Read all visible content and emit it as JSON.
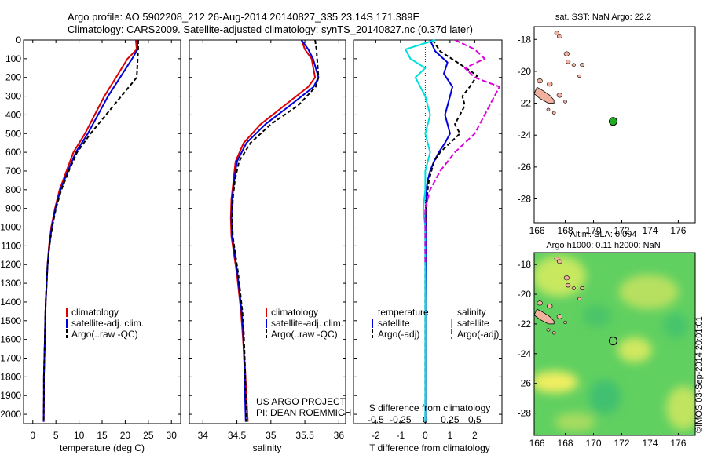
{
  "header": {
    "line1": "Argo profile: AO 5902208_212 26-Aug-2014 20140827_335 23.14S 171.389E",
    "line2": "Climatology: CARS2009. Satellite-adjusted climatology: synTS_20140827.nc (0.37d later)"
  },
  "colors": {
    "clim": "#dd0000",
    "sat": "#0000dd",
    "argo": "#000000",
    "sal_sat": "#00dddd",
    "sal_argo": "#dd00dd",
    "land": "#f0b29e"
  },
  "chart_data": [
    {
      "type": "line",
      "name": "temperature",
      "xlabel": "temperature (deg C)",
      "xlim": [
        -2,
        32
      ],
      "ylim": [
        0,
        2050
      ],
      "xticks": [
        "0",
        "5",
        "10",
        "15",
        "20",
        "25",
        "30"
      ],
      "xtick_values": [
        0,
        5,
        10,
        15,
        20,
        25,
        30
      ],
      "depth_ticks": [
        "0",
        "100",
        "200",
        "300",
        "400",
        "500",
        "600",
        "700",
        "800",
        "900",
        "1000",
        "1100",
        "1200",
        "1300",
        "1400",
        "1500",
        "1600",
        "1700",
        "1800",
        "1900",
        "2000"
      ],
      "legend": [
        "climatology",
        "satellite-adj. clim.",
        "Argo(..raw -QC)"
      ],
      "series": [
        {
          "name": "climatology",
          "x": [
            22.3,
            22.5,
            20.5,
            15.5,
            11.3,
            8.8,
            7.3,
            5.8,
            4.8,
            4.0,
            3.5,
            3.2,
            3.0,
            2.8,
            2.7,
            2.6,
            2.5,
            2.4,
            2.4,
            2.35
          ],
          "y": [
            0,
            50,
            100,
            300,
            500,
            600,
            700,
            800,
            900,
            1000,
            1100,
            1200,
            1300,
            1400,
            1500,
            1600,
            1700,
            1800,
            1900,
            2040
          ]
        },
        {
          "name": "satellite-adj. clim.",
          "x": [
            22.6,
            22.7,
            21.5,
            16.3,
            11.9,
            9.3,
            7.6,
            6.0,
            4.9,
            4.1,
            3.6,
            3.2,
            3.0,
            2.8,
            2.7,
            2.6,
            2.5,
            2.4,
            2.4,
            2.35
          ],
          "y": [
            0,
            50,
            100,
            300,
            500,
            600,
            700,
            800,
            900,
            1000,
            1100,
            1200,
            1300,
            1400,
            1500,
            1600,
            1700,
            1800,
            1900,
            2040
          ]
        },
        {
          "name": "Argo(..raw -QC)",
          "x": [
            22.8,
            22.8,
            22.5,
            17.5,
            12.5,
            9.6,
            7.8,
            6.2,
            5.0,
            4.2,
            3.6,
            3.2,
            3.0,
            2.8,
            2.7,
            2.6,
            2.5,
            2.4,
            2.4,
            2.35
          ],
          "y": [
            0,
            50,
            200,
            350,
            500,
            600,
            700,
            800,
            900,
            1000,
            1100,
            1200,
            1300,
            1400,
            1500,
            1600,
            1700,
            1800,
            1900,
            2040
          ]
        }
      ]
    },
    {
      "type": "line",
      "name": "salinity",
      "xlabel": "salinity",
      "xlim": [
        33.8,
        36.1
      ],
      "ylim": [
        0,
        2050
      ],
      "xticks": [
        "34",
        "34.5",
        "35",
        "35.5",
        "36"
      ],
      "xtick_values": [
        34,
        34.5,
        35,
        35.5,
        36
      ],
      "legend": [
        "climatology",
        "satellite-adj. clim.",
        "Argo(..raw -QC)"
      ],
      "series": [
        {
          "name": "climatology",
          "x": [
            35.45,
            35.5,
            35.6,
            35.65,
            35.55,
            35.2,
            34.85,
            34.6,
            34.48,
            34.45,
            34.42,
            34.41,
            34.42,
            34.46,
            34.5,
            34.53,
            34.56,
            34.58,
            34.6,
            34.62,
            34.64,
            34.66
          ],
          "y": [
            0,
            50,
            100,
            200,
            250,
            350,
            450,
            550,
            650,
            750,
            850,
            950,
            1050,
            1150,
            1250,
            1350,
            1450,
            1550,
            1650,
            1750,
            1900,
            2040
          ]
        },
        {
          "name": "satellite-adj. clim.",
          "x": [
            35.45,
            35.55,
            35.62,
            35.7,
            35.63,
            35.28,
            34.92,
            34.64,
            34.5,
            34.46,
            34.43,
            34.42,
            34.43,
            34.47,
            34.51,
            34.54,
            34.57,
            34.59,
            34.6,
            34.61,
            34.62,
            34.63
          ],
          "y": [
            0,
            50,
            100,
            200,
            250,
            350,
            450,
            550,
            650,
            750,
            850,
            950,
            1050,
            1150,
            1250,
            1350,
            1450,
            1550,
            1650,
            1750,
            1900,
            2040
          ]
        },
        {
          "name": "Argo(..raw -QC)",
          "x": [
            35.65,
            35.67,
            35.68,
            35.7,
            35.66,
            35.4,
            35.0,
            34.7,
            34.53,
            34.47,
            34.44,
            34.43,
            34.44,
            34.48,
            34.52,
            34.55,
            34.58,
            34.6,
            34.61,
            34.62,
            34.63,
            34.64
          ],
          "y": [
            0,
            50,
            100,
            200,
            250,
            350,
            450,
            550,
            650,
            750,
            850,
            950,
            1050,
            1150,
            1250,
            1350,
            1450,
            1550,
            1650,
            1750,
            1900,
            2040
          ]
        }
      ]
    },
    {
      "type": "line",
      "name": "difference",
      "xlabel_bottom": "T difference from climatology",
      "xlabel_top": "S difference from climatology",
      "xlim": [
        -2.9,
        3.1
      ],
      "ylim": [
        0,
        2050
      ],
      "t_xticks": [
        "-2",
        "-1",
        "0",
        "1",
        "2"
      ],
      "t_xtick_values": [
        -2,
        -1,
        0,
        1,
        2
      ],
      "s_xticks": [
        "-0.5",
        "-0.25",
        "0",
        "0.25",
        "0.5"
      ],
      "s_xtick_values": [
        -0.5,
        -0.25,
        0,
        0.25,
        0.5
      ],
      "legend_temperature_title": "temperature",
      "legend_salinity_title": "salinity",
      "legend_temperature": [
        "satellite",
        "Argo(-adj)"
      ],
      "legend_salinity": [
        "satellite",
        "Argo(-adj)"
      ],
      "series": [
        {
          "name": "temperature satellite",
          "x": [
            0.2,
            0.4,
            0.9,
            0.75,
            1.1,
            1.0,
            0.9,
            0.8,
            0.9,
            1.0,
            0.8,
            0.55,
            0.35,
            0.2,
            0.1,
            0.05,
            0.03,
            0.02,
            0.02,
            0.01,
            0.01,
            0.01
          ],
          "y": [
            0,
            60,
            120,
            180,
            250,
            300,
            350,
            400,
            450,
            500,
            550,
            600,
            650,
            700,
            750,
            800,
            900,
            1000,
            1200,
            1400,
            1700,
            2040
          ]
        },
        {
          "name": "temperature Argo(-adj)",
          "x": [
            0.3,
            0.6,
            1.3,
            2.1,
            1.8,
            1.5,
            1.6,
            1.4,
            1.2,
            1.4,
            1.0,
            0.6,
            0.35,
            0.25,
            0.15,
            0.1,
            0.05,
            0.0,
            0.0,
            0.0,
            0.0,
            0.0
          ],
          "y": [
            0,
            60,
            120,
            190,
            250,
            300,
            350,
            400,
            450,
            500,
            550,
            600,
            650,
            700,
            750,
            800,
            900,
            1000,
            1200,
            1400,
            1700,
            2040
          ]
        },
        {
          "name": "salinity satellite",
          "x": [
            0.1,
            -0.2,
            -0.15,
            0.0,
            -0.1,
            0.0,
            0.05,
            0.0,
            0.05,
            0.0,
            0.0,
            -0.02,
            0.0,
            0.0,
            0.0,
            0.0,
            0.0,
            0.0,
            0.0,
            0.0
          ],
          "y": [
            0,
            50,
            100,
            150,
            200,
            300,
            400,
            500,
            600,
            700,
            800,
            900,
            1000,
            1100,
            1200,
            1400,
            1600,
            1800,
            1900,
            2040
          ]
        },
        {
          "name": "salinity Argo(-adj)",
          "x": [
            0.3,
            0.5,
            0.6,
            0.4,
            0.5,
            0.75,
            0.7,
            0.6,
            0.5,
            0.3,
            0.15,
            0.05,
            0.0,
            0.0,
            0.0,
            0.0
          ],
          "y": [
            0,
            50,
            100,
            150,
            200,
            250,
            300,
            400,
            500,
            600,
            700,
            800,
            900,
            1000,
            1100,
            1200
          ]
        }
      ]
    }
  ],
  "map_sst": {
    "title": "sat. SST: NaN Argo: 22.2",
    "xticks": [
      "166",
      "168",
      "170",
      "172",
      "174",
      "176"
    ],
    "xtick_values": [
      166,
      168,
      170,
      172,
      174,
      176
    ],
    "yticks": [
      "-18",
      "-20",
      "-22",
      "-24",
      "-26",
      "-28"
    ],
    "ytick_values": [
      -18,
      -20,
      -22,
      -24,
      -26,
      -28
    ],
    "lon_range": [
      165.8,
      177.2
    ],
    "lat_range": [
      -17.2,
      -29.5
    ],
    "float_lon": 171.389,
    "float_lat": -23.14,
    "float_color": "#22aa22"
  },
  "map_sla": {
    "title_line1": "Altim. SLA: 0.094",
    "title_line2": "Argo h1000: 0.11 h2000: NaN",
    "xticks": [
      "166",
      "168",
      "170",
      "172",
      "174",
      "176"
    ],
    "yticks": [
      "-18",
      "-20",
      "-22",
      "-24",
      "-26",
      "-28"
    ],
    "lon_range": [
      165.8,
      177.2
    ],
    "lat_range": [
      -17.2,
      -29.5
    ],
    "float_lon": 171.389,
    "float_lat": -23.14
  },
  "credits": {
    "project": "US ARGO PROJECT",
    "pi": "PI: DEAN ROEMMICH"
  },
  "watermark": "©IMOS 03-Sep-2014 20:01:01"
}
